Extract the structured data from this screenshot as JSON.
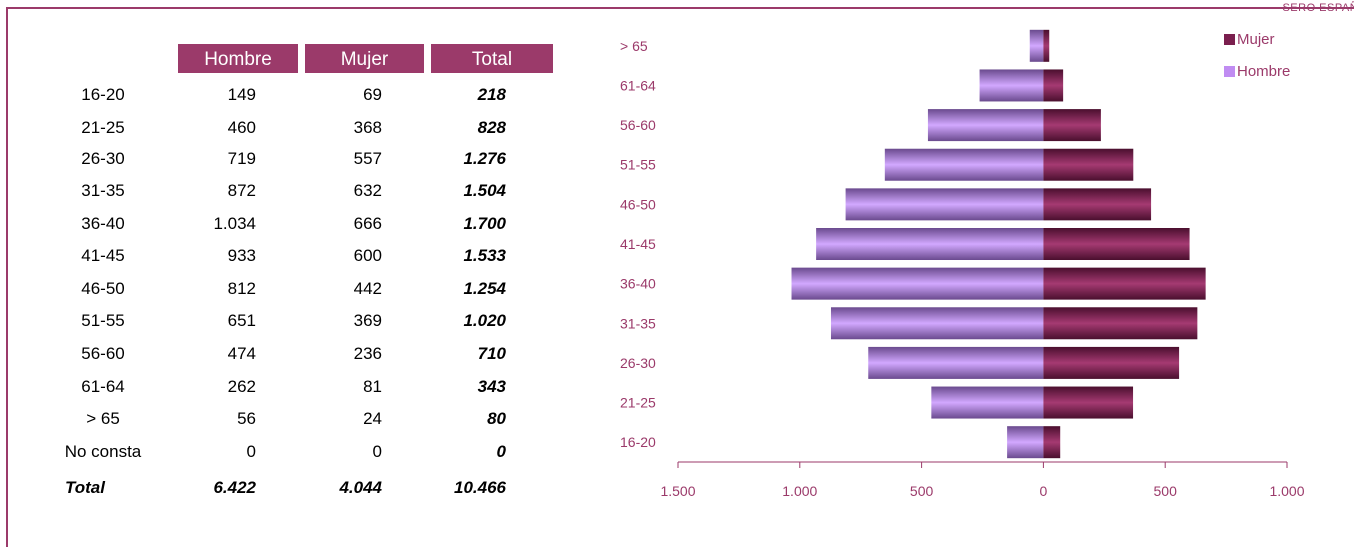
{
  "corner_tag": "SERO ESPAÑA",
  "table": {
    "headers": [
      "Hombre",
      "Mujer",
      "Total"
    ],
    "rows": [
      {
        "label": "16-20",
        "hombre": "149",
        "mujer": "69",
        "total": "218"
      },
      {
        "label": "21-25",
        "hombre": "460",
        "mujer": "368",
        "total": "828"
      },
      {
        "label": "26-30",
        "hombre": "719",
        "mujer": "557",
        "total": "1.276"
      },
      {
        "label": "31-35",
        "hombre": "872",
        "mujer": "632",
        "total": "1.504"
      },
      {
        "label": "36-40",
        "hombre": "1.034",
        "mujer": "666",
        "total": "1.700"
      },
      {
        "label": "41-45",
        "hombre": "933",
        "mujer": "600",
        "total": "1.533"
      },
      {
        "label": "46-50",
        "hombre": "812",
        "mujer": "442",
        "total": "1.254"
      },
      {
        "label": "51-55",
        "hombre": "651",
        "mujer": "369",
        "total": "1.020"
      },
      {
        "label": "56-60",
        "hombre": "474",
        "mujer": "236",
        "total": "710"
      },
      {
        "label": "61-64",
        "hombre": "262",
        "mujer": "81",
        "total": "343"
      },
      {
        "label": "> 65",
        "hombre": "56",
        "mujer": "24",
        "total": "80"
      },
      {
        "label": "No consta",
        "hombre": "0",
        "mujer": "0",
        "total": "0"
      }
    ],
    "total_row": {
      "label": "Total",
      "hombre": "6.422",
      "mujer": "4.044",
      "total": "10.466"
    }
  },
  "colors": {
    "accent": "#9b3a6a",
    "mujer": "#7a1f4e",
    "hombre": "#c08cf2"
  },
  "chart_data": {
    "type": "bar",
    "orientation": "horizontal",
    "categories": [
      "16-20",
      "21-25",
      "26-30",
      "31-35",
      "36-40",
      "41-45",
      "46-50",
      "51-55",
      "56-60",
      "61-64",
      "> 65"
    ],
    "series": [
      {
        "name": "Mujer",
        "values": [
          69,
          368,
          557,
          632,
          666,
          600,
          442,
          369,
          236,
          81,
          24
        ]
      },
      {
        "name": "Hombre",
        "values": [
          -149,
          -460,
          -719,
          -872,
          -1034,
          -933,
          -812,
          -651,
          -474,
          -262,
          -56
        ]
      }
    ],
    "xlim": [
      -1500,
      1000
    ],
    "xticks": [
      -1500,
      -1000,
      -500,
      0,
      500,
      1000
    ],
    "xtick_labels": [
      "1.500",
      "1.000",
      "500",
      "0",
      "500",
      "1.000"
    ],
    "legend": [
      "Mujer",
      "Hombre"
    ],
    "legend_position": "top-right"
  }
}
